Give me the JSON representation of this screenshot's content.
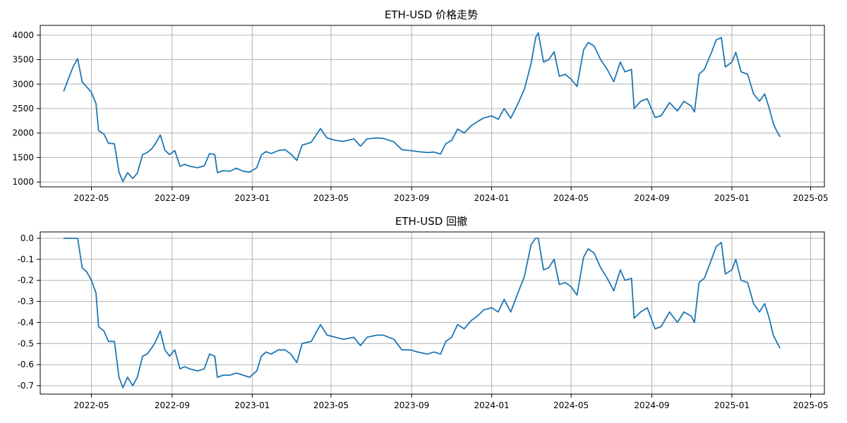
{
  "colors": {
    "series": "#1f77b4",
    "grid": "#b0b0b0",
    "axis": "#000000"
  },
  "chart_data": [
    {
      "type": "line",
      "title": "ETH-USD 价格走势",
      "xlabel": "",
      "ylabel": "",
      "grid": true,
      "xlim": [
        "2022-02-12",
        "2025-05-22"
      ],
      "ylim": [
        900,
        4200
      ],
      "x_ticks": [
        "2022-05",
        "2022-09",
        "2023-01",
        "2023-05",
        "2023-09",
        "2024-01",
        "2024-05",
        "2024-09",
        "2025-01",
        "2025-05"
      ],
      "y_ticks": [
        "1000",
        "1500",
        "2000",
        "2500",
        "3000",
        "3500",
        "4000"
      ],
      "series": [
        {
          "x": [
            "2022-03-20",
            "2022-03-27",
            "2022-04-03",
            "2022-04-10",
            "2022-04-17",
            "2022-04-24",
            "2022-05-01",
            "2022-05-08",
            "2022-05-12",
            "2022-05-20",
            "2022-05-27",
            "2022-06-05",
            "2022-06-12",
            "2022-06-18",
            "2022-06-25",
            "2022-07-03",
            "2022-07-10",
            "2022-07-18",
            "2022-07-25",
            "2022-08-01",
            "2022-08-07",
            "2022-08-14",
            "2022-08-21",
            "2022-08-28",
            "2022-09-05",
            "2022-09-13",
            "2022-09-20",
            "2022-09-28",
            "2022-10-10",
            "2022-10-20",
            "2022-10-28",
            "2022-11-05",
            "2022-11-09",
            "2022-11-18",
            "2022-11-28",
            "2022-12-08",
            "2022-12-18",
            "2022-12-28",
            "2023-01-08",
            "2023-01-15",
            "2023-01-22",
            "2023-01-30",
            "2023-02-10",
            "2023-02-20",
            "2023-03-01",
            "2023-03-10",
            "2023-03-18",
            "2023-04-01",
            "2023-04-15",
            "2023-04-25",
            "2023-05-08",
            "2023-05-20",
            "2023-06-05",
            "2023-06-15",
            "2023-06-25",
            "2023-07-10",
            "2023-07-20",
            "2023-08-05",
            "2023-08-17",
            "2023-08-30",
            "2023-09-10",
            "2023-09-25",
            "2023-10-05",
            "2023-10-15",
            "2023-10-23",
            "2023-11-01",
            "2023-11-10",
            "2023-11-20",
            "2023-12-01",
            "2023-12-10",
            "2023-12-20",
            "2024-01-01",
            "2024-01-11",
            "2024-01-20",
            "2024-01-30",
            "2024-02-10",
            "2024-02-20",
            "2024-03-01",
            "2024-03-08",
            "2024-03-12",
            "2024-03-20",
            "2024-03-28",
            "2024-04-05",
            "2024-04-13",
            "2024-04-22",
            "2024-05-01",
            "2024-05-10",
            "2024-05-20",
            "2024-05-27",
            "2024-06-05",
            "2024-06-15",
            "2024-06-25",
            "2024-07-05",
            "2024-07-15",
            "2024-07-22",
            "2024-08-01",
            "2024-08-05",
            "2024-08-15",
            "2024-08-25",
            "2024-09-06",
            "2024-09-15",
            "2024-09-28",
            "2024-10-10",
            "2024-10-20",
            "2024-10-31",
            "2024-11-05",
            "2024-11-12",
            "2024-11-20",
            "2024-12-01",
            "2024-12-08",
            "2024-12-16",
            "2024-12-22",
            "2025-01-01",
            "2025-01-07",
            "2025-01-15",
            "2025-01-25",
            "2025-02-03",
            "2025-02-12",
            "2025-02-20",
            "2025-02-27",
            "2025-03-05",
            "2025-03-10",
            "2025-03-15"
          ],
          "values": [
            2860,
            3110,
            3350,
            3520,
            3040,
            2940,
            2830,
            2600,
            2050,
            1980,
            1790,
            1780,
            1200,
            1010,
            1190,
            1070,
            1180,
            1560,
            1600,
            1680,
            1790,
            1960,
            1650,
            1560,
            1640,
            1320,
            1360,
            1320,
            1290,
            1330,
            1580,
            1560,
            1190,
            1230,
            1220,
            1280,
            1220,
            1200,
            1290,
            1550,
            1620,
            1580,
            1640,
            1660,
            1570,
            1440,
            1750,
            1810,
            2090,
            1900,
            1850,
            1830,
            1880,
            1730,
            1880,
            1900,
            1890,
            1820,
            1660,
            1640,
            1620,
            1600,
            1610,
            1570,
            1780,
            1850,
            2080,
            2000,
            2150,
            2230,
            2310,
            2350,
            2280,
            2500,
            2300,
            2600,
            2900,
            3420,
            3950,
            4050,
            3450,
            3500,
            3660,
            3160,
            3200,
            3100,
            2950,
            3700,
            3850,
            3780,
            3500,
            3300,
            3050,
            3450,
            3250,
            3300,
            2500,
            2650,
            2700,
            2320,
            2350,
            2620,
            2450,
            2650,
            2550,
            2430,
            3200,
            3300,
            3650,
            3900,
            3950,
            3350,
            3450,
            3650,
            3250,
            3200,
            2800,
            2650,
            2800,
            2500,
            2200,
            2050,
            1930
          ]
        }
      ]
    },
    {
      "type": "line",
      "title": "ETH-USD 回撤",
      "xlabel": "",
      "ylabel": "",
      "grid": true,
      "xlim": [
        "2022-02-12",
        "2025-05-22"
      ],
      "ylim": [
        -0.74,
        0.03
      ],
      "x_ticks": [
        "2022-05",
        "2022-09",
        "2023-01",
        "2023-05",
        "2023-09",
        "2024-01",
        "2024-05",
        "2024-09",
        "2025-01",
        "2025-05"
      ],
      "y_ticks": [
        "0.0",
        "-0.1",
        "-0.2",
        "-0.3",
        "-0.4",
        "-0.5",
        "-0.6",
        "-0.7"
      ],
      "series": [
        {
          "x": [
            "2022-03-20",
            "2022-03-27",
            "2022-04-03",
            "2022-04-10",
            "2022-04-17",
            "2022-04-24",
            "2022-05-01",
            "2022-05-08",
            "2022-05-12",
            "2022-05-20",
            "2022-05-27",
            "2022-06-05",
            "2022-06-12",
            "2022-06-18",
            "2022-06-25",
            "2022-07-03",
            "2022-07-10",
            "2022-07-18",
            "2022-07-25",
            "2022-08-01",
            "2022-08-07",
            "2022-08-14",
            "2022-08-21",
            "2022-08-28",
            "2022-09-05",
            "2022-09-13",
            "2022-09-20",
            "2022-09-28",
            "2022-10-10",
            "2022-10-20",
            "2022-10-28",
            "2022-11-05",
            "2022-11-09",
            "2022-11-18",
            "2022-11-28",
            "2022-12-08",
            "2022-12-18",
            "2022-12-28",
            "2023-01-08",
            "2023-01-15",
            "2023-01-22",
            "2023-01-30",
            "2023-02-10",
            "2023-02-20",
            "2023-03-01",
            "2023-03-10",
            "2023-03-18",
            "2023-04-01",
            "2023-04-15",
            "2023-04-25",
            "2023-05-08",
            "2023-05-20",
            "2023-06-05",
            "2023-06-15",
            "2023-06-25",
            "2023-07-10",
            "2023-07-20",
            "2023-08-05",
            "2023-08-17",
            "2023-08-30",
            "2023-09-10",
            "2023-09-25",
            "2023-10-05",
            "2023-10-15",
            "2023-10-23",
            "2023-11-01",
            "2023-11-10",
            "2023-11-20",
            "2023-12-01",
            "2023-12-10",
            "2023-12-20",
            "2024-01-01",
            "2024-01-11",
            "2024-01-20",
            "2024-01-30",
            "2024-02-10",
            "2024-02-20",
            "2024-03-01",
            "2024-03-08",
            "2024-03-12",
            "2024-03-20",
            "2024-03-28",
            "2024-04-05",
            "2024-04-13",
            "2024-04-22",
            "2024-05-01",
            "2024-05-10",
            "2024-05-20",
            "2024-05-27",
            "2024-06-05",
            "2024-06-15",
            "2024-06-25",
            "2024-07-05",
            "2024-07-15",
            "2024-07-22",
            "2024-08-01",
            "2024-08-05",
            "2024-08-15",
            "2024-08-25",
            "2024-09-06",
            "2024-09-15",
            "2024-09-28",
            "2024-10-10",
            "2024-10-20",
            "2024-10-31",
            "2024-11-05",
            "2024-11-12",
            "2024-11-20",
            "2024-12-01",
            "2024-12-08",
            "2024-12-16",
            "2024-12-22",
            "2025-01-01",
            "2025-01-07",
            "2025-01-15",
            "2025-01-25",
            "2025-02-03",
            "2025-02-12",
            "2025-02-20",
            "2025-02-27",
            "2025-03-05",
            "2025-03-10",
            "2025-03-15"
          ],
          "values": [
            0,
            0,
            0,
            0,
            -0.14,
            -0.16,
            -0.2,
            -0.26,
            -0.42,
            -0.44,
            -0.49,
            -0.49,
            -0.66,
            -0.71,
            -0.66,
            -0.7,
            -0.66,
            -0.56,
            -0.55,
            -0.52,
            -0.49,
            -0.44,
            -0.53,
            -0.56,
            -0.53,
            -0.62,
            -0.61,
            -0.62,
            -0.63,
            -0.62,
            -0.55,
            -0.56,
            -0.66,
            -0.65,
            -0.65,
            -0.64,
            -0.65,
            -0.66,
            -0.63,
            -0.56,
            -0.54,
            -0.55,
            -0.53,
            -0.53,
            -0.55,
            -0.59,
            -0.5,
            -0.49,
            -0.41,
            -0.46,
            -0.47,
            -0.48,
            -0.47,
            -0.51,
            -0.47,
            -0.46,
            -0.46,
            -0.48,
            -0.53,
            -0.53,
            -0.54,
            -0.55,
            -0.54,
            -0.55,
            -0.49,
            -0.47,
            -0.41,
            -0.43,
            -0.39,
            -0.37,
            -0.34,
            -0.33,
            -0.35,
            -0.29,
            -0.35,
            -0.26,
            -0.18,
            -0.03,
            0,
            0,
            -0.15,
            -0.14,
            -0.1,
            -0.22,
            -0.21,
            -0.23,
            -0.27,
            -0.09,
            -0.05,
            -0.07,
            -0.14,
            -0.19,
            -0.25,
            -0.15,
            -0.2,
            -0.19,
            -0.38,
            -0.35,
            -0.33,
            -0.43,
            -0.42,
            -0.35,
            -0.4,
            -0.35,
            -0.37,
            -0.4,
            -0.21,
            -0.19,
            -0.1,
            -0.04,
            -0.02,
            -0.17,
            -0.15,
            -0.1,
            -0.2,
            -0.21,
            -0.31,
            -0.35,
            -0.31,
            -0.38,
            -0.46,
            -0.49,
            -0.52
          ]
        }
      ]
    }
  ]
}
